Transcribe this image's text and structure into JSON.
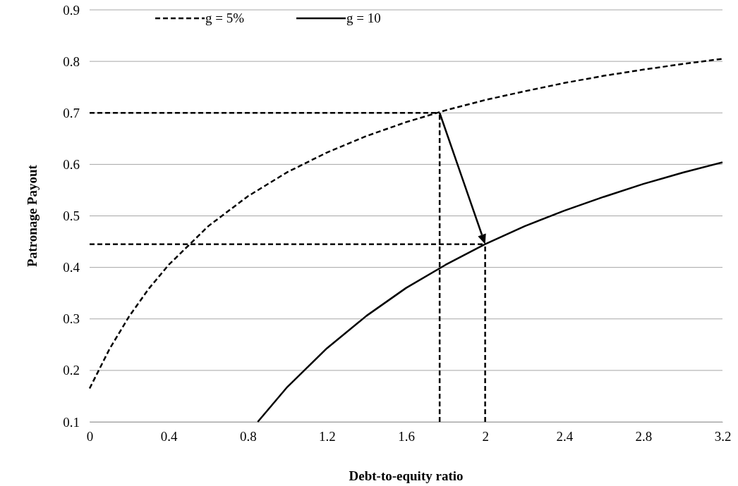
{
  "chart_data": {
    "type": "line",
    "xlabel": "Debt-to-equity ratio",
    "ylabel": "Patronage Payout",
    "xlim": [
      0,
      3.2
    ],
    "xticks": [
      0,
      0.4,
      0.8,
      1.2,
      1.6,
      2,
      2.4,
      2.8,
      3.2
    ],
    "ylim": [
      0.1,
      0.9
    ],
    "yticks": [
      0.1,
      0.2,
      0.3,
      0.4,
      0.5,
      0.6,
      0.7,
      0.8,
      0.9
    ],
    "grid": "y",
    "legend": "top left",
    "marker": "none",
    "series": [
      {
        "name": "g = 5%",
        "color": "#000000",
        "line_style": "dashed",
        "x": [
          0,
          0.1,
          0.2,
          0.3,
          0.4,
          0.6,
          0.8,
          1.0,
          1.2,
          1.4,
          1.6,
          1.8,
          2.0,
          2.2,
          2.4,
          2.6,
          2.8,
          3.0,
          3.2
        ],
        "values": [
          0.165,
          0.241,
          0.305,
          0.359,
          0.405,
          0.48,
          0.538,
          0.585,
          0.623,
          0.655,
          0.682,
          0.705,
          0.725,
          0.742,
          0.758,
          0.772,
          0.784,
          0.795,
          0.805
        ]
      },
      {
        "name": "g = 10",
        "color": "#000000",
        "line_style": "solid",
        "x": [
          0.85,
          1.0,
          1.2,
          1.4,
          1.6,
          1.8,
          2.0,
          2.2,
          2.4,
          2.6,
          2.8,
          3.0,
          3.2
        ],
        "values": [
          0.1,
          0.168,
          0.243,
          0.306,
          0.36,
          0.405,
          0.445,
          0.48,
          0.51,
          0.537,
          0.562,
          0.584,
          0.604
        ]
      },
      {
        "color": "#000000",
        "line_style": "dashed",
        "x": [
          0,
          1.77
        ],
        "values": [
          0.7,
          0.7
        ]
      },
      {
        "color": "#000000",
        "line_style": "dashed",
        "x": [
          1.77,
          1.77
        ],
        "values": [
          0.1,
          0.7
        ]
      },
      {
        "color": "#000000",
        "line_style": "dashed",
        "x": [
          0,
          2.0
        ],
        "values": [
          0.445,
          0.445
        ]
      },
      {
        "color": "#000000",
        "line_style": "dashed",
        "x": [
          2.0,
          2.0
        ],
        "values": [
          0.1,
          0.445
        ]
      }
    ]
  }
}
